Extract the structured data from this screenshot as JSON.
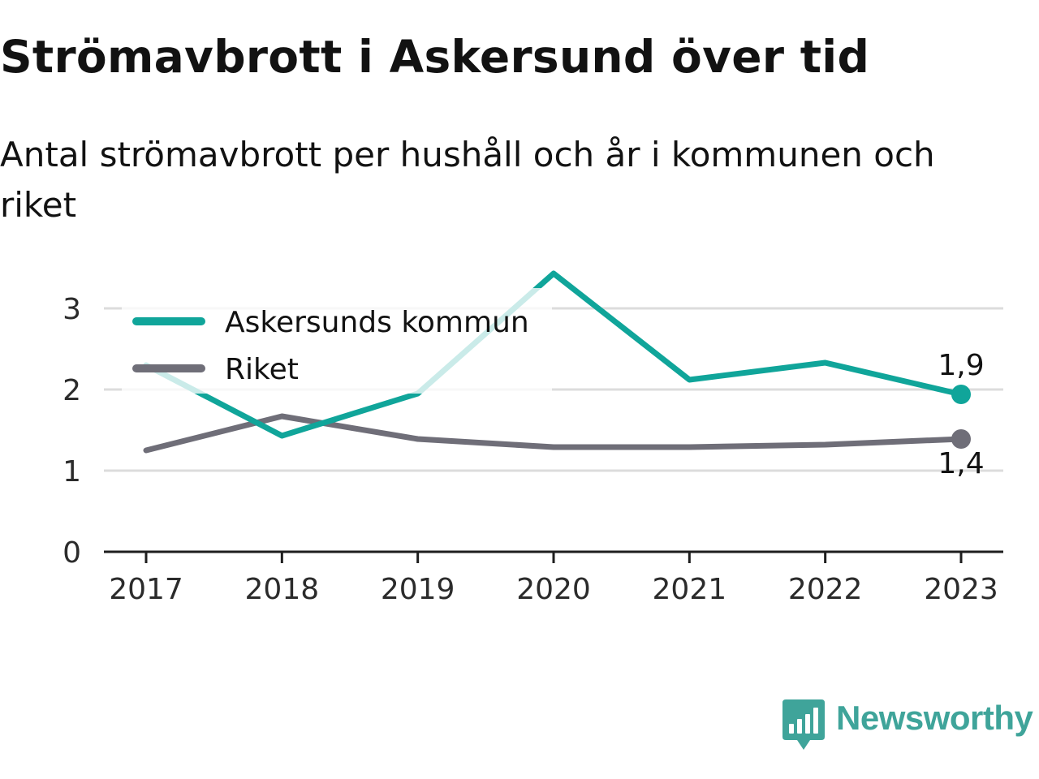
{
  "header": {
    "title": "Strömavbrott i Askersund över tid",
    "subtitle": "Antal strömavbrott per hushåll och år i kommunen och riket"
  },
  "chart_data": {
    "type": "line",
    "categories": [
      "2017",
      "2018",
      "2019",
      "2020",
      "2021",
      "2022",
      "2023"
    ],
    "series": [
      {
        "name": "Askersunds kommun",
        "values": [
          2.3,
          1.43,
          1.95,
          3.43,
          2.12,
          2.33,
          1.94
        ],
        "color": "#10a59a",
        "end_label": "1,9"
      },
      {
        "name": "Riket",
        "values": [
          1.25,
          1.67,
          1.39,
          1.29,
          1.29,
          1.32,
          1.39
        ],
        "color": "#6f6e78",
        "end_label": "1,4"
      }
    ],
    "yticks": [
      "0",
      "1",
      "2",
      "3"
    ],
    "ylim": [
      0,
      3.5
    ],
    "grid": true,
    "legend": "top-left",
    "xlabel": "",
    "ylabel": ""
  },
  "branding": {
    "logo_text": "Newsworthy",
    "logo_color": "#3fa49a",
    "logo_icon": "bar-chart-speech-bubble-icon"
  }
}
